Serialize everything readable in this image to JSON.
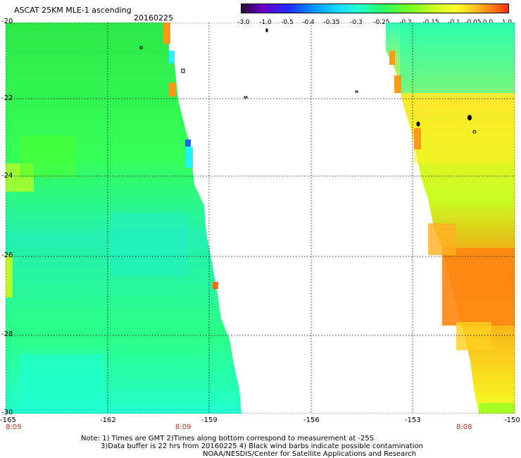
{
  "header": {
    "title": "ASCAT 25KM MLE-1 ascending",
    "date": "20160225"
  },
  "colorbar": {
    "ticks": [
      "-3.0",
      "-1.0",
      "-0.5",
      "-0.4",
      "-0.35",
      "-0.3",
      "-0.25",
      "-0.2",
      "-0.15",
      "-0.1",
      "-0.05",
      "0.0",
      "1.0"
    ],
    "colors": [
      "#2a0a3a",
      "#6b00c8",
      "#1f30ff",
      "#0096ff",
      "#1ad8ff",
      "#20ffd0",
      "#24ff6a",
      "#6cff24",
      "#c8ff20",
      "#ffff28",
      "#ffc020",
      "#ff7d12",
      "#ff2e0e"
    ]
  },
  "map": {
    "lat_labels": [
      "-20",
      "-22",
      "-24",
      "-26",
      "-28",
      "-30"
    ],
    "lon_labels": [
      "-165",
      "-162",
      "-159",
      "-156",
      "-153",
      "-150"
    ],
    "lon_range": [
      -165,
      -150
    ],
    "lat_range": [
      -20,
      -30
    ],
    "swath_left": "green-cyan, mostly -0.2 to -0.3",
    "swath_right": "yellow-orange, -0.05 to 0.0"
  },
  "times": [
    "8:09",
    "8:09",
    "8:08"
  ],
  "notes": [
    "Note: 1) Times are GMT 2)Times along bottom correspond to measurement at -25S",
    "3)Data buffer is 22 hrs from 20160225 4) Black wind barbs indicate possible contamination",
    "NOAA/NESDIS/Center for Satellite Applications and Research"
  ]
}
